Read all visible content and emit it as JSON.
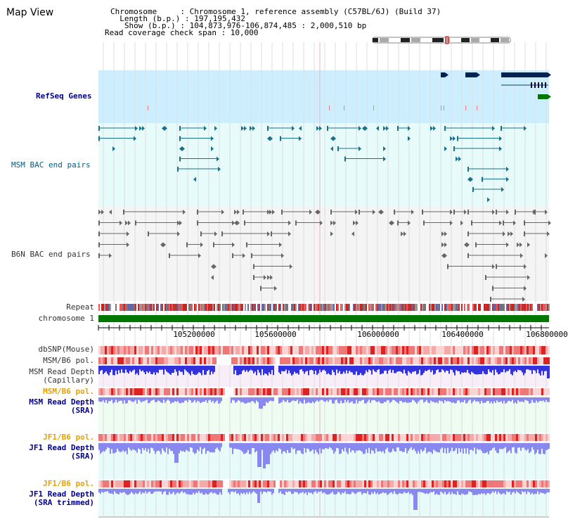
{
  "window": {
    "title": "Map View"
  },
  "info": {
    "lines": [
      "Chromosome     : Chromosome 1, reference assembly (C57BL/6J) (Build 37)",
      "  Length (b.p.) : 197,195,432",
      "   Show (b.p.) : 104,873,976-106,874,485 : 2,000,510 bp",
      "Read coverage check span : 10,000"
    ]
  },
  "tracks": {
    "refseq": "RefSeq Genes",
    "msm_bac": "MSM BAC end pairs",
    "b6n_bac": "B6N BAC end pairs",
    "repeat": "Repeat",
    "chromosome": "chromosome 1",
    "dbsnp": "dbSNP(Mouse)",
    "msm_pol1": "MSM/B6 pol.",
    "msm_depth_cap_1": "MSM Read Depth",
    "msm_depth_cap_2": "(Capillary)",
    "msm_pol2": "MSM/B6 pol.",
    "msm_depth_sra_1": "MSM Read Depth",
    "msm_depth_sra_2": "(SRA)",
    "jf1_pol1": "JF1/B6 pol.",
    "jf1_depth_1": "JF1 Read Depth",
    "jf1_depth_2": "(SRA)",
    "jf1_pol2": "JF1/B6 pol.",
    "jf1_trim_1": "JF1 Read Depth",
    "jf1_trim_2": "(SRA trimmed)"
  },
  "axis": {
    "start": 104873976,
    "end": 106874485,
    "ticks": [
      "105200000",
      "105600000",
      "106000000",
      "106400000",
      "106800000"
    ]
  },
  "colors": {
    "refseq_bg": "#cceeff",
    "bac_bg": "#e8fbfb",
    "b6n_bg": "#f4f4f4",
    "gene": "#002255",
    "gene_green": "#007700",
    "msm_bac": "#1a6f8a",
    "b6n_bac": "#666666",
    "chrom_bar": "#007700",
    "depth_blue": "#3333dd",
    "depth_light": "#8888ee",
    "pol_red": "#ee4444"
  }
}
